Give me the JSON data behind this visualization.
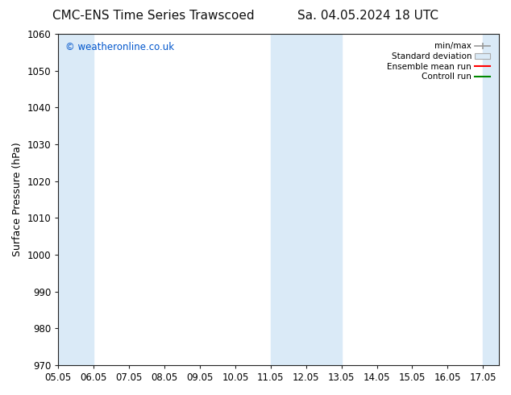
{
  "title_left": "CMC-ENS Time Series Trawscoed",
  "title_right": "Sa. 04.05.2024 18 UTC",
  "ylabel": "Surface Pressure (hPa)",
  "xlim": [
    5.05,
    17.5
  ],
  "ylim": [
    970,
    1060
  ],
  "yticks": [
    970,
    980,
    990,
    1000,
    1010,
    1020,
    1030,
    1040,
    1050,
    1060
  ],
  "xticks": [
    5.05,
    6.05,
    7.05,
    8.05,
    9.05,
    10.05,
    11.05,
    12.05,
    13.05,
    14.05,
    15.05,
    16.05,
    17.05
  ],
  "xticklabels": [
    "05.05",
    "06.05",
    "07.05",
    "08.05",
    "09.05",
    "10.05",
    "11.05",
    "12.05",
    "13.05",
    "14.05",
    "15.05",
    "16.05",
    "17.05"
  ],
  "shaded_bands": [
    {
      "x_start": 5.05,
      "x_end": 6.05
    },
    {
      "x_start": 11.05,
      "x_end": 13.05
    },
    {
      "x_start": 17.05,
      "x_end": 17.5
    }
  ],
  "shaded_color": "#daeaf7",
  "watermark": "© weatheronline.co.uk",
  "watermark_color": "#0055cc",
  "legend_labels": [
    "min/max",
    "Standard deviation",
    "Ensemble mean run",
    "Controll run"
  ],
  "legend_line_colors": [
    "#999999",
    "#aaaaaa",
    "#ff0000",
    "#008800"
  ],
  "legend_fill_color": "#daeaf7",
  "background_color": "#ffffff",
  "plot_bg_color": "#ffffff",
  "title_fontsize": 11,
  "label_fontsize": 9,
  "tick_fontsize": 8.5
}
